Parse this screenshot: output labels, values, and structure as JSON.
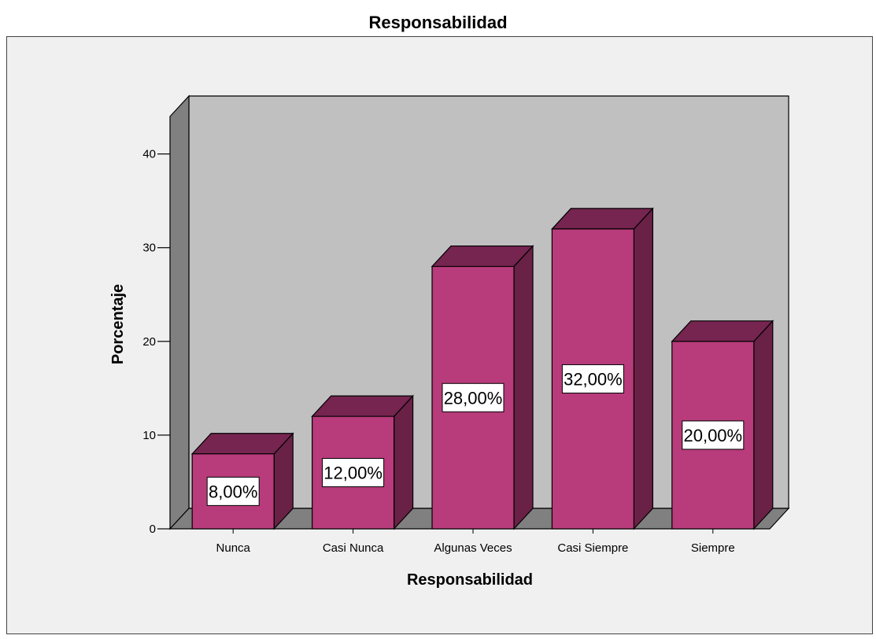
{
  "chart_data": {
    "type": "bar",
    "style": "3d",
    "title": "Responsabilidad",
    "xlabel": "Responsabilidad",
    "ylabel": "Porcentaje",
    "categories": [
      "Nunca",
      "Casi Nunca",
      "Algunas Veces",
      "Casi Siempre",
      "Siempre"
    ],
    "values": [
      8,
      12,
      28,
      32,
      20
    ],
    "data_labels": [
      "8,00%",
      "12,00%",
      "28,00%",
      "32,00%",
      "20,00%"
    ],
    "yticks": [
      0,
      10,
      20,
      30,
      40
    ],
    "ylim": [
      0,
      44
    ],
    "grid": false,
    "legend": "none",
    "colors": {
      "bar_front": "#b83b7b",
      "bar_top": "#762450",
      "bar_side": "#6a2146",
      "back_wall": "#c0c0c0",
      "side_wall": "#808080",
      "floor": "#808080",
      "frame_background": "#f0f0f0"
    }
  }
}
